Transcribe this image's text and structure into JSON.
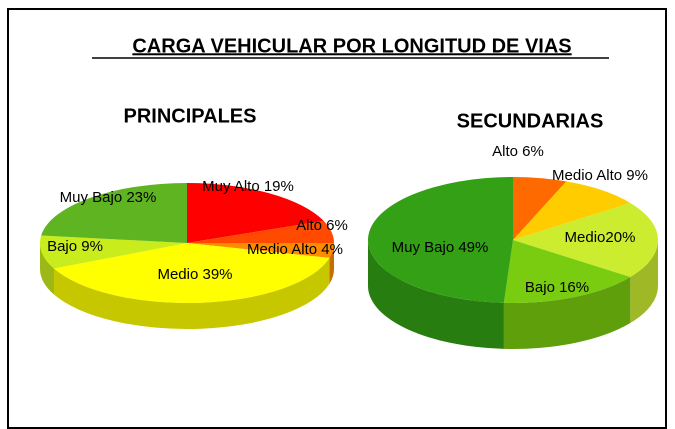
{
  "title": "CARGA VEHICULAR POR LONGITUD DE VIAS",
  "chart_data": [
    {
      "type": "pie3d",
      "title": "PRINCIPALES",
      "values": [
        19,
        6,
        4,
        39,
        9,
        23
      ],
      "value_labels": [
        "Muy Alto 19%",
        "Alto 6%",
        "Medio Alto 4%",
        "Medio 39%",
        "Bajo 9%",
        "Muy Bajo 23%"
      ],
      "colors": [
        "#ff0000",
        "#ff4a00",
        "#ff8c00",
        "#ffff00",
        "#c8ec1c",
        "#5fb521"
      ]
    },
    {
      "type": "pie3d",
      "title": "SECUNDARIAS",
      "values": [
        6,
        9,
        20,
        16,
        49
      ],
      "value_labels": [
        "Alto 6%",
        "Medio Alto 9%",
        "Medio20%",
        "Bajo 16%",
        "Muy Bajo 49%"
      ],
      "colors": [
        "#ff6a00",
        "#ffcc00",
        "#ccec30",
        "#7acc10",
        "#33a015"
      ]
    }
  ]
}
